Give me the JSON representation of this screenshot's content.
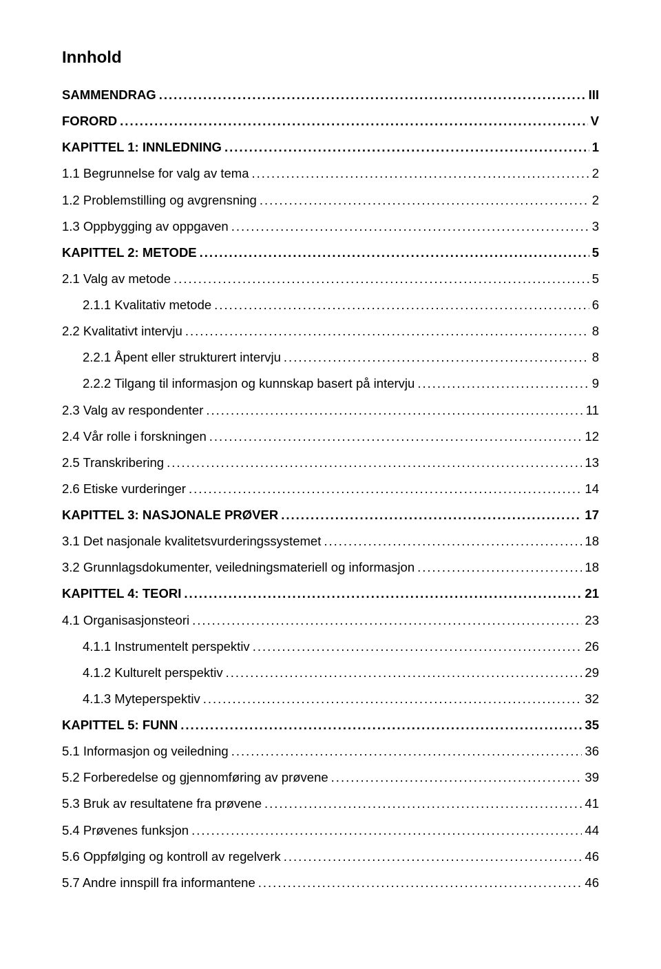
{
  "title": "Innhold",
  "font": {
    "family": "Arial",
    "heading_size_pt": 18,
    "body_size_pt": 14
  },
  "colors": {
    "text": "#000000",
    "background": "#ffffff"
  },
  "toc": [
    {
      "label": "SAMMENDRAG",
      "page": "III",
      "bold": true,
      "indent": 0
    },
    {
      "label": "FORORD",
      "page": "V",
      "bold": true,
      "indent": 0
    },
    {
      "label": "KAPITTEL 1: INNLEDNING",
      "page": "1",
      "bold": true,
      "indent": 0
    },
    {
      "label": "1.1 Begrunnelse for valg av tema",
      "page": "2",
      "bold": false,
      "indent": 0
    },
    {
      "label": "1.2 Problemstilling og avgrensning",
      "page": "2",
      "bold": false,
      "indent": 0
    },
    {
      "label": "1.3 Oppbygging av oppgaven",
      "page": "3",
      "bold": false,
      "indent": 0
    },
    {
      "label": "KAPITTEL 2: METODE",
      "page": "5",
      "bold": true,
      "indent": 0
    },
    {
      "label": "2.1 Valg av metode",
      "page": "5",
      "bold": false,
      "indent": 0
    },
    {
      "label": "2.1.1 Kvalitativ metode",
      "page": "6",
      "bold": false,
      "indent": 1
    },
    {
      "label": "2.2 Kvalitativt intervju",
      "page": "8",
      "bold": false,
      "indent": 0
    },
    {
      "label": "2.2.1 Åpent eller strukturert intervju",
      "page": "8",
      "bold": false,
      "indent": 1
    },
    {
      "label": "2.2.2 Tilgang til informasjon og kunnskap basert på intervju",
      "page": "9",
      "bold": false,
      "indent": 1
    },
    {
      "label": "2.3 Valg av respondenter",
      "page": "11",
      "bold": false,
      "indent": 0
    },
    {
      "label": "2.4 Vår rolle i forskningen",
      "page": "12",
      "bold": false,
      "indent": 0
    },
    {
      "label": "2.5 Transkribering",
      "page": "13",
      "bold": false,
      "indent": 0
    },
    {
      "label": "2.6 Etiske vurderinger",
      "page": "14",
      "bold": false,
      "indent": 0
    },
    {
      "label": "KAPITTEL 3: NASJONALE PRØVER",
      "page": "17",
      "bold": true,
      "indent": 0
    },
    {
      "label": "3.1 Det nasjonale kvalitetsvurderingssystemet",
      "page": "18",
      "bold": false,
      "indent": 0
    },
    {
      "label": "3.2 Grunnlagsdokumenter, veiledningsmateriell og informasjon",
      "page": "18",
      "bold": false,
      "indent": 0
    },
    {
      "label": "KAPITTEL 4: TEORI",
      "page": "21",
      "bold": true,
      "indent": 0
    },
    {
      "label": "4.1 Organisasjonsteori",
      "page": "23",
      "bold": false,
      "indent": 0
    },
    {
      "label": "4.1.1 Instrumentelt perspektiv",
      "page": "26",
      "bold": false,
      "indent": 1
    },
    {
      "label": "4.1.2 Kulturelt perspektiv",
      "page": "29",
      "bold": false,
      "indent": 1
    },
    {
      "label": "4.1.3 Myteperspektiv",
      "page": "32",
      "bold": false,
      "indent": 1
    },
    {
      "label": "KAPITTEL 5: FUNN",
      "page": "35",
      "bold": true,
      "indent": 0
    },
    {
      "label": "5.1 Informasjon og veiledning",
      "page": "36",
      "bold": false,
      "indent": 0
    },
    {
      "label": "5.2 Forberedelse og gjennomføring av prøvene",
      "page": "39",
      "bold": false,
      "indent": 0
    },
    {
      "label": "5.3 Bruk av resultatene fra prøvene",
      "page": "41",
      "bold": false,
      "indent": 0
    },
    {
      "label": "5.4 Prøvenes funksjon",
      "page": "44",
      "bold": false,
      "indent": 0
    },
    {
      "label": "5.6 Oppfølging og kontroll av regelverk",
      "page": "46",
      "bold": false,
      "indent": 0
    },
    {
      "label": "5.7 Andre innspill fra informantene",
      "page": "46",
      "bold": false,
      "indent": 0
    }
  ]
}
